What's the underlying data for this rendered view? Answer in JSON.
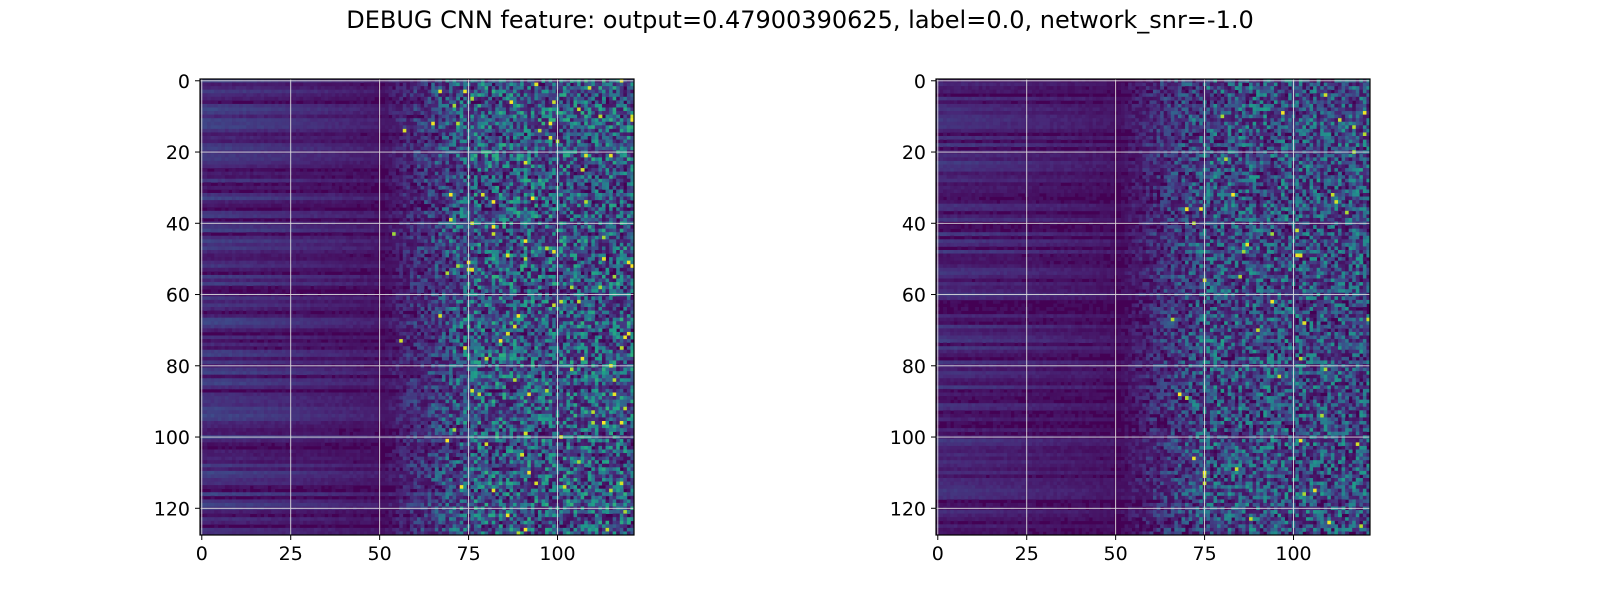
{
  "title": "DEBUG CNN feature: output=0.47900390625, label=0.0, network_snr=-1.0",
  "chart_data": [
    {
      "type": "heatmap",
      "title": "",
      "xlabel": "",
      "ylabel": "",
      "shape": [
        128,
        122
      ],
      "xlim": [
        -0.5,
        121.5
      ],
      "ylim": [
        127.5,
        -0.5
      ],
      "x_ticks": [
        0,
        25,
        50,
        75,
        100
      ],
      "y_ticks": [
        0,
        20,
        40,
        60,
        80,
        100,
        120
      ],
      "grid": true,
      "colormap": "viridis",
      "pattern": {
        "noise_onset_column": 50,
        "noise_ramp_end_column": 75,
        "band_intensity": 0.2,
        "noise_intensity": 0.27,
        "hot_pixel_fraction": 0.013,
        "seed": 12345
      }
    },
    {
      "type": "heatmap",
      "title": "",
      "xlabel": "",
      "ylabel": "",
      "shape": [
        128,
        122
      ],
      "xlim": [
        -0.5,
        121.5
      ],
      "ylim": [
        127.5,
        -0.5
      ],
      "x_ticks": [
        0,
        25,
        50,
        75,
        100
      ],
      "y_ticks": [
        0,
        20,
        40,
        60,
        80,
        100,
        120
      ],
      "grid": true,
      "colormap": "viridis",
      "pattern": {
        "noise_onset_column": 50,
        "noise_ramp_end_column": 75,
        "band_intensity": 0.16,
        "noise_intensity": 0.24,
        "hot_pixel_fraction": 0.006,
        "seed": 67890
      }
    }
  ]
}
